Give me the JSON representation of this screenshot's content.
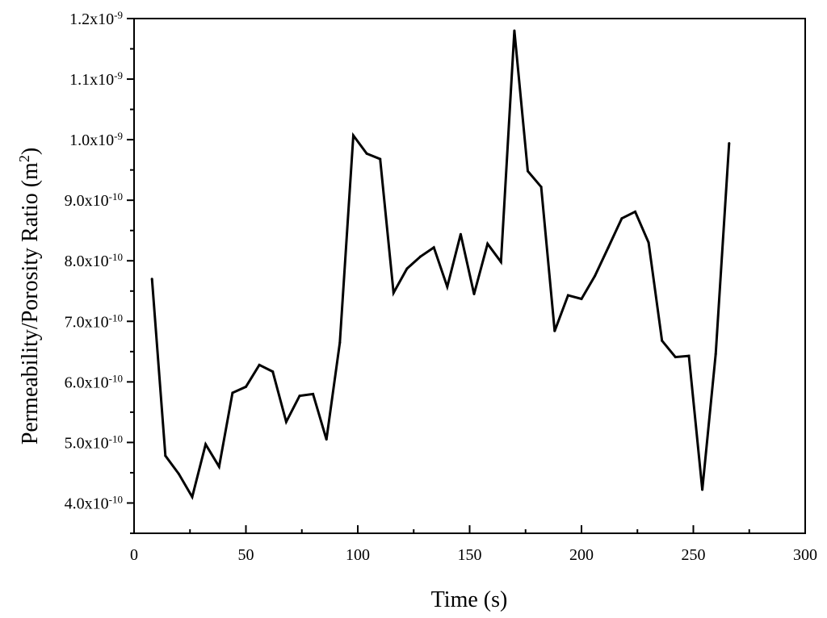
{
  "chart_data": {
    "type": "line",
    "title": "",
    "xlabel": "Time (s)",
    "ylabel_main": "Permeability/Porosity Ratio (m",
    "ylabel_sup": "2",
    "ylabel_close": ")",
    "xlim": [
      0,
      300
    ],
    "ylim": [
      3.5e-10,
      1.2e-09
    ],
    "x_ticks": [
      0,
      50,
      100,
      150,
      200,
      250,
      300
    ],
    "x_tick_labels": [
      "0",
      "50",
      "100",
      "150",
      "200",
      "250",
      "300"
    ],
    "y_ticks": [
      {
        "value": 4e-10,
        "mantissa": "4.0x10",
        "exp": "-10"
      },
      {
        "value": 5e-10,
        "mantissa": "5.0x10",
        "exp": "-10"
      },
      {
        "value": 6e-10,
        "mantissa": "6.0x10",
        "exp": "-10"
      },
      {
        "value": 7e-10,
        "mantissa": "7.0x10",
        "exp": "-10"
      },
      {
        "value": 8e-10,
        "mantissa": "8.0x10",
        "exp": "-10"
      },
      {
        "value": 9e-10,
        "mantissa": "9.0x10",
        "exp": "-10"
      },
      {
        "value": 1e-09,
        "mantissa": "1.0x10",
        "exp": "-9"
      },
      {
        "value": 1.1e-09,
        "mantissa": "1.1x10",
        "exp": "-9"
      },
      {
        "value": 1.2e-09,
        "mantissa": "1.2x10",
        "exp": "-9"
      }
    ],
    "grid": false,
    "line_color": "#000000",
    "series": [
      {
        "x": [
          8,
          14,
          20,
          26,
          32,
          38,
          44,
          50,
          56,
          62,
          68,
          74,
          80,
          86,
          92,
          98,
          104,
          110,
          116,
          122,
          128,
          134,
          140,
          146,
          152,
          158,
          164,
          170,
          176,
          182,
          188,
          194,
          200,
          206,
          212,
          218,
          224,
          230,
          236,
          242,
          248,
          254,
          260,
          266
        ],
        "y": [
          7.7e-10,
          4.78e-10,
          4.48e-10,
          4.1e-10,
          4.97e-10,
          4.6e-10,
          5.82e-10,
          5.92e-10,
          6.28e-10,
          6.17e-10,
          5.34e-10,
          5.77e-10,
          5.8e-10,
          5.05e-10,
          6.65e-10,
          1.007e-09,
          9.77e-10,
          9.68e-10,
          7.47e-10,
          7.87e-10,
          8.07e-10,
          8.22e-10,
          7.57e-10,
          8.44e-10,
          7.45e-10,
          8.28e-10,
          7.98e-10,
          1.18e-09,
          9.48e-10,
          9.22e-10,
          6.84e-10,
          7.43e-10,
          7.37e-10,
          7.75e-10,
          8.22e-10,
          8.7e-10,
          8.81e-10,
          8.3e-10,
          6.68e-10,
          6.41e-10,
          6.43e-10,
          4.22e-10,
          6.46e-10,
          9.94e-10
        ]
      }
    ]
  }
}
